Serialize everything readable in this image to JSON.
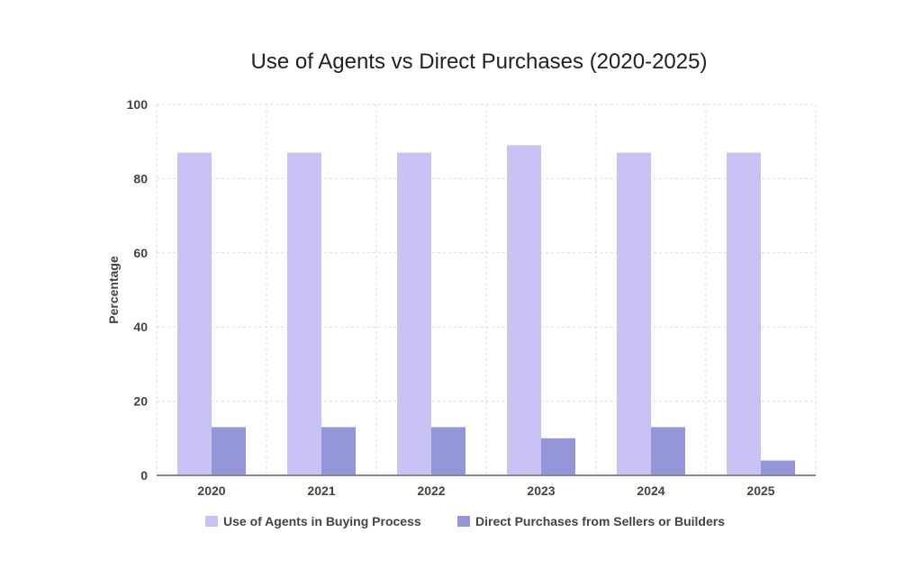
{
  "chart_data": {
    "type": "bar",
    "title": "Use of Agents vs Direct Purchases (2020-2025)",
    "xlabel": "",
    "ylabel": "Percentage",
    "ylim": [
      0,
      100
    ],
    "yticks": [
      0,
      20,
      40,
      60,
      80,
      100
    ],
    "grid": true,
    "legend_placement": "bottom",
    "categories": [
      "2020",
      "2021",
      "2022",
      "2023",
      "2024",
      "2025"
    ],
    "series": [
      {
        "name": "Use of Agents in Buying Process",
        "values": [
          87,
          87,
          87,
          89,
          87,
          87
        ],
        "color": "#c9c2f5"
      },
      {
        "name": "Direct Purchases from Sellers or Builders",
        "values": [
          13,
          13,
          13,
          10,
          13,
          4
        ],
        "color": "#9496d8"
      }
    ]
  }
}
